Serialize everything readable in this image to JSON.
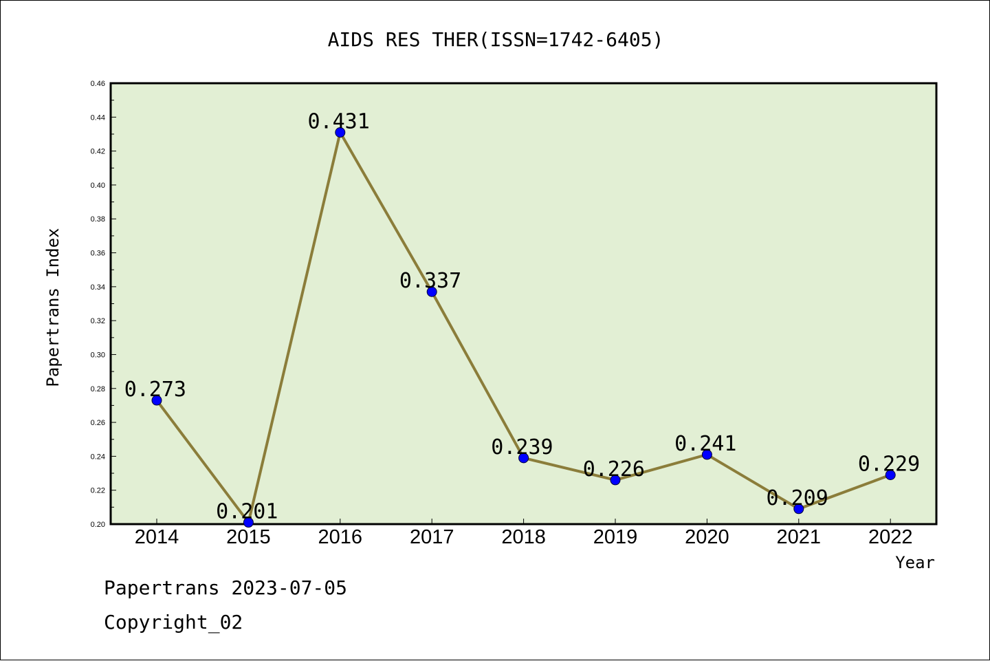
{
  "chart_data": {
    "type": "line",
    "title": "AIDS RES THER(ISSN=1742-6405)",
    "xlabel": "Year",
    "ylabel": "Papertrans Index",
    "x": [
      "2014",
      "2015",
      "2016",
      "2017",
      "2018",
      "2019",
      "2020",
      "2021",
      "2022"
    ],
    "series": [
      {
        "values": [
          0.273,
          0.201,
          0.431,
          0.337,
          0.239,
          0.226,
          0.241,
          0.209,
          0.229
        ],
        "labels": [
          "0.273",
          "0.201",
          "0.431",
          "0.337",
          "0.239",
          "0.226",
          "0.241",
          "0.209",
          "0.229"
        ]
      }
    ],
    "ylim": [
      0.2,
      0.46
    ],
    "yticks": [
      "0.20",
      "0.22",
      "0.24",
      "0.26",
      "0.28",
      "0.30",
      "0.32",
      "0.34",
      "0.36",
      "0.38",
      "0.40",
      "0.42",
      "0.44",
      "0.46"
    ],
    "grid": false,
    "legend": "none"
  },
  "colors": {
    "plot_background": "#e2efd4",
    "line": "#8b7d3a",
    "marker": "#0000ff",
    "frame": "#000000"
  },
  "footer": {
    "line1": "Papertrans 2023-07-05",
    "line2": "Copyright_02"
  }
}
